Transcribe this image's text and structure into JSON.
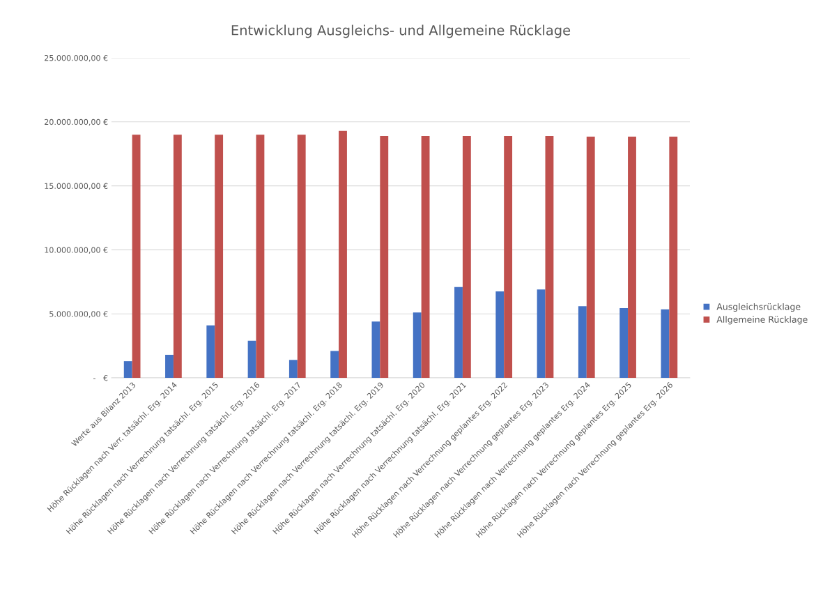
{
  "chart_data": {
    "type": "bar",
    "title": "Entwicklung Ausgleichs- und Allgemeine Rücklage",
    "categories": [
      "Werte aus Bilanz 2013",
      "Höhe Rücklagen nach Verr. tatsächl. Erg. 2014",
      "Höhe Rücklagen nach Verrechnung tatsächl. Erg. 2015",
      "Höhe Rücklagen nach Verrechnung tatsächl. Erg. 2016",
      "Höhe Rücklagen nach Verrechnung tatsächl. Erg. 2017",
      "Höhe Rücklagen nach Verrechnung tatsächl. Erg. 2018",
      "Höhe Rücklagen nach Verrechnung tatsächl. Erg. 2019",
      "Höhe Rücklagen nach Verrechnung tatsächl. Erg. 2020",
      "Höhe Rücklagen nach Verrechnung tatsächl. Erg. 2021",
      "Höhe Rücklagen nach Verrechnung geplantes Erg. 2022",
      "Höhe Rücklagen nach Verrechnung geplantes Erg. 2023",
      "Höhe Rücklagen nach Verrechnung geplantes Erg. 2024",
      "Höhe Rücklagen nach Verrechnung geplantes Erg. 2025",
      "Höhe Rücklagen nach Verrechnung geplantes Erg. 2026"
    ],
    "series": [
      {
        "name": "Ausgleichsrücklage",
        "color": "#4472c4",
        "values": [
          1300000,
          1800000,
          4100000,
          2900000,
          1400000,
          2100000,
          4400000,
          5100000,
          7100000,
          6750000,
          6900000,
          5600000,
          5450000,
          5350000
        ]
      },
      {
        "name": "Allgemeine Rücklage",
        "color": "#c0504d",
        "values": [
          19000000,
          19000000,
          19000000,
          19000000,
          19000000,
          19300000,
          18900000,
          18900000,
          18900000,
          18900000,
          18900000,
          18850000,
          18850000,
          18850000
        ]
      }
    ],
    "ylim": [
      0,
      25000000
    ],
    "yticks": [
      {
        "value": 0,
        "label": "-   €"
      },
      {
        "value": 5000000,
        "label": "5.000.000,00 €"
      },
      {
        "value": 10000000,
        "label": "10.000.000,00 €"
      },
      {
        "value": 15000000,
        "label": "15.000.000,00 €"
      },
      {
        "value": 20000000,
        "label": "20.000.000,00 €"
      },
      {
        "value": 25000000,
        "label": "25.000.000,00 €"
      }
    ],
    "grid": "y",
    "legend": "right"
  }
}
